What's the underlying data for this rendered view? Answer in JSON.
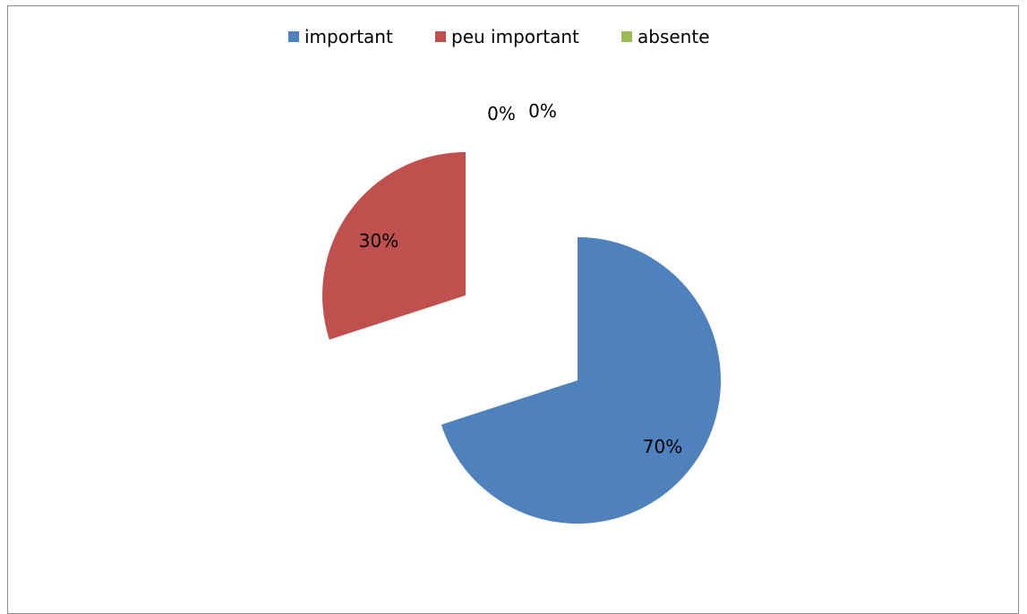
{
  "chart_data": {
    "type": "pie",
    "title": "",
    "categories": [
      "important",
      "peu important",
      "absente",
      ""
    ],
    "values": [
      70,
      30,
      0,
      0
    ],
    "data_labels": [
      "70%",
      "30%",
      "0%",
      "0%"
    ],
    "colors": [
      "#4F81BD",
      "#C0504D",
      "#9BBB59",
      "#8064A2"
    ],
    "legend": {
      "position": "top",
      "entries": [
        "important",
        "peu important",
        "absente"
      ]
    },
    "exploded": true
  }
}
